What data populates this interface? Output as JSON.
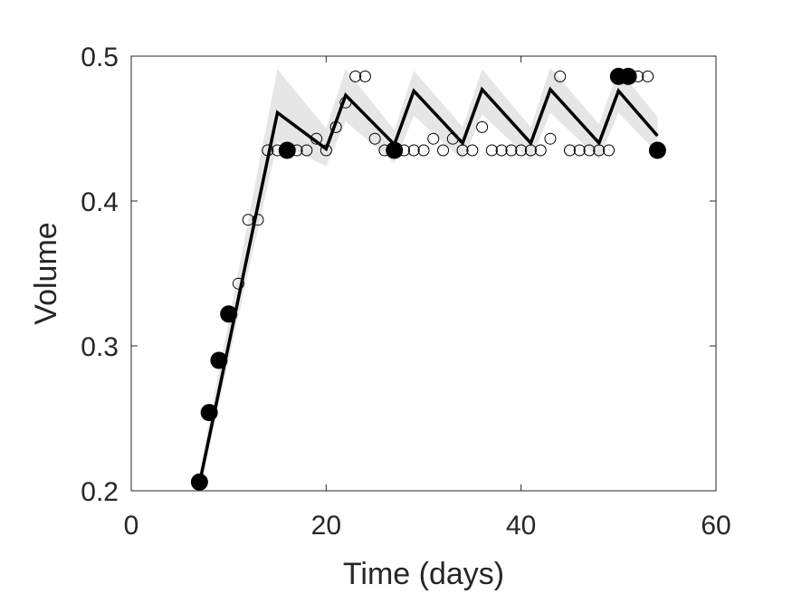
{
  "chart_data": {
    "type": "scatter",
    "xlabel": "Time (days)",
    "ylabel": "Volume",
    "xlim": [
      0,
      60
    ],
    "ylim": [
      0.2,
      0.5
    ],
    "xticks": [
      0,
      20,
      40,
      60
    ],
    "yticks": [
      0.2,
      0.3,
      0.4,
      0.5
    ],
    "xtick_labels": [
      "0",
      "20",
      "40",
      "60"
    ],
    "ytick_labels": [
      "0.2",
      "0.3",
      "0.4",
      "0.5"
    ],
    "grid": false,
    "colors": {
      "line": "#000000",
      "band": "#e6e6e6",
      "axis": "#262626"
    },
    "series": [
      {
        "kind": "line",
        "x": [
          7,
          15,
          20,
          22,
          27,
          29,
          34,
          36,
          41,
          43,
          48,
          50,
          54
        ],
        "y": [
          0.205,
          0.461,
          0.436,
          0.473,
          0.439,
          0.476,
          0.44,
          0.477,
          0.44,
          0.477,
          0.44,
          0.476,
          0.445
        ]
      },
      {
        "kind": "band",
        "x": [
          7,
          15,
          20,
          22,
          27,
          29,
          34,
          36,
          41,
          43,
          48,
          50,
          54
        ],
        "upper": [
          0.213,
          0.491,
          0.45,
          0.491,
          0.449,
          0.49,
          0.451,
          0.491,
          0.451,
          0.492,
          0.453,
          0.491,
          0.458
        ],
        "lower": [
          0.2,
          0.441,
          0.424,
          0.455,
          0.426,
          0.459,
          0.428,
          0.46,
          0.428,
          0.461,
          0.429,
          0.461,
          0.433
        ]
      },
      {
        "kind": "points-open",
        "x": [
          11,
          12,
          13,
          14,
          15,
          16,
          17,
          18,
          19,
          20,
          21,
          22,
          23,
          24,
          25,
          26,
          27,
          28,
          29,
          30,
          31,
          32,
          33,
          34,
          35,
          36,
          37,
          38,
          39,
          40,
          41,
          42,
          43,
          44,
          45,
          46,
          47,
          48,
          49,
          51,
          52,
          53
        ],
        "y": [
          0.343,
          0.387,
          0.387,
          0.435,
          0.435,
          0.435,
          0.435,
          0.435,
          0.443,
          0.435,
          0.451,
          0.468,
          0.486,
          0.486,
          0.443,
          0.435,
          0.435,
          0.435,
          0.435,
          0.435,
          0.443,
          0.435,
          0.443,
          0.435,
          0.435,
          0.451,
          0.435,
          0.435,
          0.435,
          0.435,
          0.435,
          0.435,
          0.443,
          0.486,
          0.435,
          0.435,
          0.435,
          0.435,
          0.435,
          0.486,
          0.486,
          0.486
        ]
      },
      {
        "kind": "points-filled",
        "x": [
          7,
          8,
          9,
          10,
          16,
          27,
          50,
          51,
          54
        ],
        "y": [
          0.206,
          0.254,
          0.29,
          0.322,
          0.435,
          0.435,
          0.486,
          0.486,
          0.435
        ]
      }
    ]
  }
}
